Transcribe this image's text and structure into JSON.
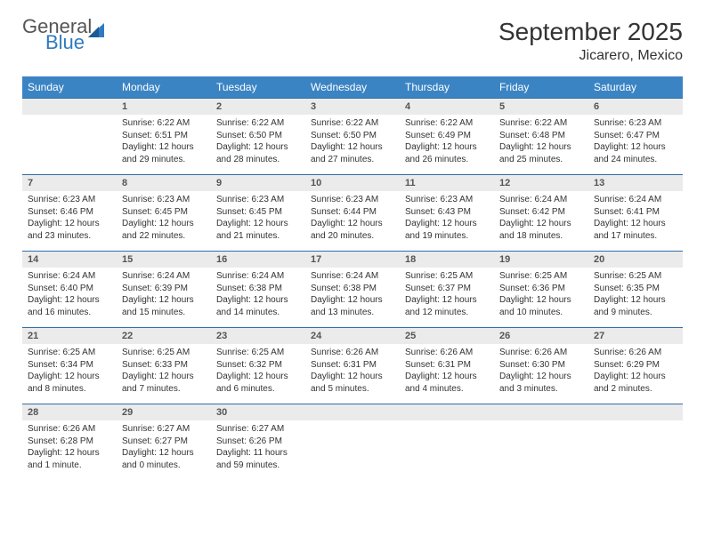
{
  "logo": {
    "line1": "General",
    "line2": "Blue"
  },
  "title": "September 2025",
  "location": "Jicarero, Mexico",
  "colors": {
    "header_bg": "#3b84c4",
    "header_text": "#ffffff",
    "daynum_bg": "#ebebeb",
    "row_border": "#2f6fa8",
    "logo_blue": "#2f7ac0"
  },
  "dayHeaders": [
    "Sunday",
    "Monday",
    "Tuesday",
    "Wednesday",
    "Thursday",
    "Friday",
    "Saturday"
  ],
  "weeks": [
    [
      {
        "day": "",
        "sunrise": "",
        "sunset": "",
        "daylight": ""
      },
      {
        "day": "1",
        "sunrise": "Sunrise: 6:22 AM",
        "sunset": "Sunset: 6:51 PM",
        "daylight": "Daylight: 12 hours and 29 minutes."
      },
      {
        "day": "2",
        "sunrise": "Sunrise: 6:22 AM",
        "sunset": "Sunset: 6:50 PM",
        "daylight": "Daylight: 12 hours and 28 minutes."
      },
      {
        "day": "3",
        "sunrise": "Sunrise: 6:22 AM",
        "sunset": "Sunset: 6:50 PM",
        "daylight": "Daylight: 12 hours and 27 minutes."
      },
      {
        "day": "4",
        "sunrise": "Sunrise: 6:22 AM",
        "sunset": "Sunset: 6:49 PM",
        "daylight": "Daylight: 12 hours and 26 minutes."
      },
      {
        "day": "5",
        "sunrise": "Sunrise: 6:22 AM",
        "sunset": "Sunset: 6:48 PM",
        "daylight": "Daylight: 12 hours and 25 minutes."
      },
      {
        "day": "6",
        "sunrise": "Sunrise: 6:23 AM",
        "sunset": "Sunset: 6:47 PM",
        "daylight": "Daylight: 12 hours and 24 minutes."
      }
    ],
    [
      {
        "day": "7",
        "sunrise": "Sunrise: 6:23 AM",
        "sunset": "Sunset: 6:46 PM",
        "daylight": "Daylight: 12 hours and 23 minutes."
      },
      {
        "day": "8",
        "sunrise": "Sunrise: 6:23 AM",
        "sunset": "Sunset: 6:45 PM",
        "daylight": "Daylight: 12 hours and 22 minutes."
      },
      {
        "day": "9",
        "sunrise": "Sunrise: 6:23 AM",
        "sunset": "Sunset: 6:45 PM",
        "daylight": "Daylight: 12 hours and 21 minutes."
      },
      {
        "day": "10",
        "sunrise": "Sunrise: 6:23 AM",
        "sunset": "Sunset: 6:44 PM",
        "daylight": "Daylight: 12 hours and 20 minutes."
      },
      {
        "day": "11",
        "sunrise": "Sunrise: 6:23 AM",
        "sunset": "Sunset: 6:43 PM",
        "daylight": "Daylight: 12 hours and 19 minutes."
      },
      {
        "day": "12",
        "sunrise": "Sunrise: 6:24 AM",
        "sunset": "Sunset: 6:42 PM",
        "daylight": "Daylight: 12 hours and 18 minutes."
      },
      {
        "day": "13",
        "sunrise": "Sunrise: 6:24 AM",
        "sunset": "Sunset: 6:41 PM",
        "daylight": "Daylight: 12 hours and 17 minutes."
      }
    ],
    [
      {
        "day": "14",
        "sunrise": "Sunrise: 6:24 AM",
        "sunset": "Sunset: 6:40 PM",
        "daylight": "Daylight: 12 hours and 16 minutes."
      },
      {
        "day": "15",
        "sunrise": "Sunrise: 6:24 AM",
        "sunset": "Sunset: 6:39 PM",
        "daylight": "Daylight: 12 hours and 15 minutes."
      },
      {
        "day": "16",
        "sunrise": "Sunrise: 6:24 AM",
        "sunset": "Sunset: 6:38 PM",
        "daylight": "Daylight: 12 hours and 14 minutes."
      },
      {
        "day": "17",
        "sunrise": "Sunrise: 6:24 AM",
        "sunset": "Sunset: 6:38 PM",
        "daylight": "Daylight: 12 hours and 13 minutes."
      },
      {
        "day": "18",
        "sunrise": "Sunrise: 6:25 AM",
        "sunset": "Sunset: 6:37 PM",
        "daylight": "Daylight: 12 hours and 12 minutes."
      },
      {
        "day": "19",
        "sunrise": "Sunrise: 6:25 AM",
        "sunset": "Sunset: 6:36 PM",
        "daylight": "Daylight: 12 hours and 10 minutes."
      },
      {
        "day": "20",
        "sunrise": "Sunrise: 6:25 AM",
        "sunset": "Sunset: 6:35 PM",
        "daylight": "Daylight: 12 hours and 9 minutes."
      }
    ],
    [
      {
        "day": "21",
        "sunrise": "Sunrise: 6:25 AM",
        "sunset": "Sunset: 6:34 PM",
        "daylight": "Daylight: 12 hours and 8 minutes."
      },
      {
        "day": "22",
        "sunrise": "Sunrise: 6:25 AM",
        "sunset": "Sunset: 6:33 PM",
        "daylight": "Daylight: 12 hours and 7 minutes."
      },
      {
        "day": "23",
        "sunrise": "Sunrise: 6:25 AM",
        "sunset": "Sunset: 6:32 PM",
        "daylight": "Daylight: 12 hours and 6 minutes."
      },
      {
        "day": "24",
        "sunrise": "Sunrise: 6:26 AM",
        "sunset": "Sunset: 6:31 PM",
        "daylight": "Daylight: 12 hours and 5 minutes."
      },
      {
        "day": "25",
        "sunrise": "Sunrise: 6:26 AM",
        "sunset": "Sunset: 6:31 PM",
        "daylight": "Daylight: 12 hours and 4 minutes."
      },
      {
        "day": "26",
        "sunrise": "Sunrise: 6:26 AM",
        "sunset": "Sunset: 6:30 PM",
        "daylight": "Daylight: 12 hours and 3 minutes."
      },
      {
        "day": "27",
        "sunrise": "Sunrise: 6:26 AM",
        "sunset": "Sunset: 6:29 PM",
        "daylight": "Daylight: 12 hours and 2 minutes."
      }
    ],
    [
      {
        "day": "28",
        "sunrise": "Sunrise: 6:26 AM",
        "sunset": "Sunset: 6:28 PM",
        "daylight": "Daylight: 12 hours and 1 minute."
      },
      {
        "day": "29",
        "sunrise": "Sunrise: 6:27 AM",
        "sunset": "Sunset: 6:27 PM",
        "daylight": "Daylight: 12 hours and 0 minutes."
      },
      {
        "day": "30",
        "sunrise": "Sunrise: 6:27 AM",
        "sunset": "Sunset: 6:26 PM",
        "daylight": "Daylight: 11 hours and 59 minutes."
      },
      {
        "day": "",
        "sunrise": "",
        "sunset": "",
        "daylight": ""
      },
      {
        "day": "",
        "sunrise": "",
        "sunset": "",
        "daylight": ""
      },
      {
        "day": "",
        "sunrise": "",
        "sunset": "",
        "daylight": ""
      },
      {
        "day": "",
        "sunrise": "",
        "sunset": "",
        "daylight": ""
      }
    ]
  ]
}
